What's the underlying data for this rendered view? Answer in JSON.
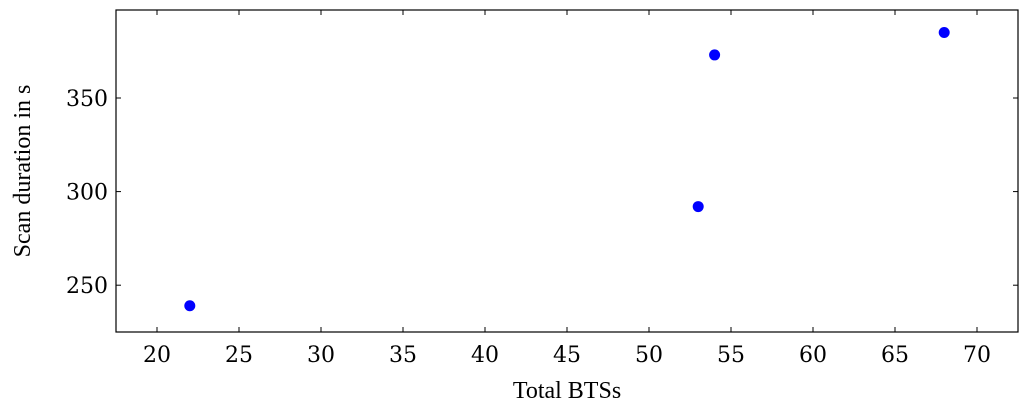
{
  "chart_data": {
    "type": "scatter",
    "xlabel": "Total BTSs",
    "ylabel": "Scan duration in s",
    "xlim": [
      17.5,
      72.5
    ],
    "ylim": [
      225,
      397
    ],
    "x_ticks": [
      20,
      25,
      30,
      35,
      40,
      45,
      50,
      55,
      60,
      65,
      70
    ],
    "y_ticks": [
      250,
      300,
      350
    ],
    "grid": false,
    "legend": "none",
    "series": [
      {
        "color": "#0000ff",
        "points": [
          {
            "x": 22,
            "y": 239
          },
          {
            "x": 53,
            "y": 292
          },
          {
            "x": 54,
            "y": 373
          },
          {
            "x": 68,
            "y": 385
          }
        ]
      }
    ]
  }
}
